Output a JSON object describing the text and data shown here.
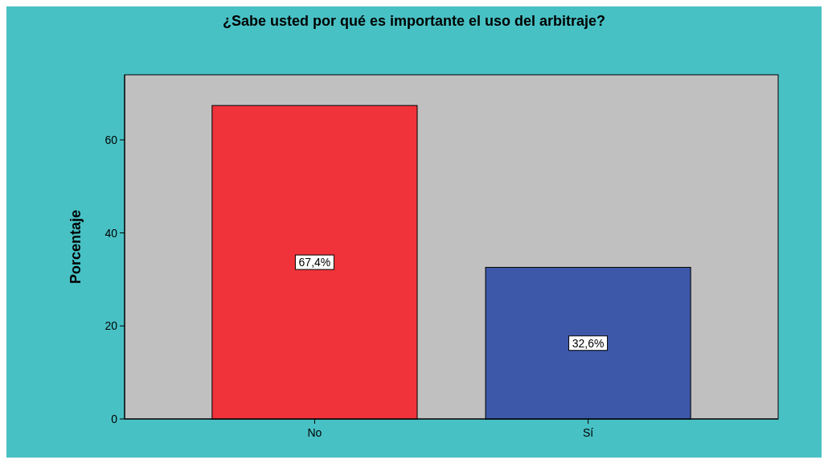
{
  "chart_data": {
    "type": "bar",
    "title": "¿Sabe usted por qué es importante el uso del arbitraje?",
    "ylabel": "Porcentaje",
    "categories": [
      "No",
      "Sí"
    ],
    "values": [
      67.4,
      32.6
    ],
    "colors": [
      "#f0333a",
      "#3d58a8"
    ],
    "value_labels": [
      "67,4%",
      "32,6%"
    ],
    "ylim": [
      0,
      74
    ],
    "yticks": [
      0,
      20,
      40,
      60
    ],
    "grid": false
  }
}
